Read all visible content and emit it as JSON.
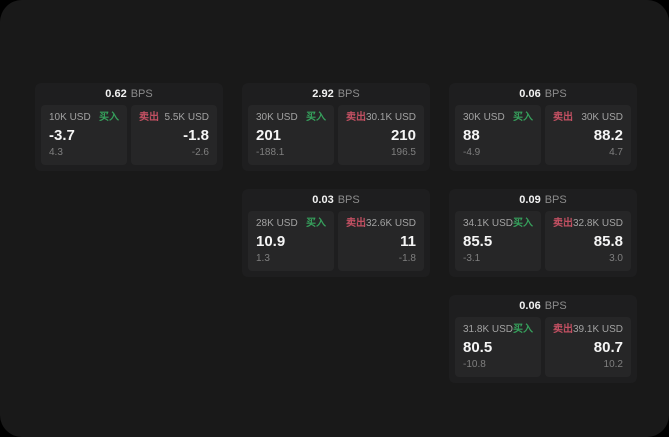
{
  "window": {
    "background": "#191919"
  },
  "labels": {
    "bps_unit": "BPS",
    "buy": "买入",
    "sell": "卖出"
  },
  "colors": {
    "buy_green": "#36a05c",
    "sell_red": "#c25062",
    "card_bg": "#1e1e1f",
    "subcard_bg": "#262627"
  },
  "cards": [
    {
      "bps": "0.62",
      "buy": {
        "amount": "10K USD",
        "price": "-3.7",
        "delta": "4.3"
      },
      "sell": {
        "amount": "5.5K USD",
        "price": "-1.8",
        "delta": "-2.6"
      }
    },
    {
      "bps": "2.92",
      "buy": {
        "amount": "30K USD",
        "price": "201",
        "delta": "-188.1"
      },
      "sell": {
        "amount": "30.1K USD",
        "price": "210",
        "delta": "196.5"
      }
    },
    {
      "bps": "0.06",
      "buy": {
        "amount": "30K USD",
        "price": "88",
        "delta": "-4.9"
      },
      "sell": {
        "amount": "30K USD",
        "price": "88.2",
        "delta": "4.7"
      }
    },
    {
      "bps": "0.03",
      "buy": {
        "amount": "28K USD",
        "price": "10.9",
        "delta": "1.3"
      },
      "sell": {
        "amount": "32.6K USD",
        "price": "11",
        "delta": "-1.8"
      }
    },
    {
      "bps": "0.09",
      "buy": {
        "amount": "34.1K USD",
        "price": "85.5",
        "delta": "-3.1"
      },
      "sell": {
        "amount": "32.8K USD",
        "price": "85.8",
        "delta": "3.0"
      }
    },
    {
      "bps": "0.06",
      "buy": {
        "amount": "31.8K USD",
        "price": "80.5",
        "delta": "-10.8"
      },
      "sell": {
        "amount": "39.1K USD",
        "price": "80.7",
        "delta": "10.2"
      }
    }
  ]
}
